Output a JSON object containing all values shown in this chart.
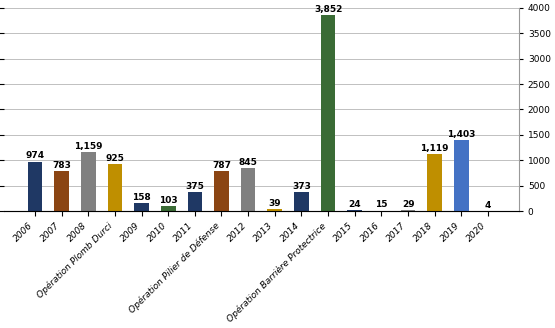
{
  "categories": [
    "2006",
    "2007",
    "2008",
    "Opération Plomb Durci",
    "2009",
    "2010",
    "2011",
    "Opération Pilier de Défense",
    "2012",
    "2013",
    "2014",
    "Opération Barrière Protectrice",
    "2015",
    "2016",
    "2017",
    "2018",
    "2019",
    "2020"
  ],
  "values": [
    974,
    783,
    1159,
    925,
    158,
    103,
    375,
    787,
    845,
    39,
    373,
    3852,
    24,
    15,
    29,
    1119,
    1403,
    4
  ],
  "colors": [
    "#1F3864",
    "#8B4513",
    "#808080",
    "#BF8F00",
    "#1F3864",
    "#3A6B35",
    "#1F3864",
    "#8B4513",
    "#808080",
    "#BF8F00",
    "#1F3864",
    "#3A6B35",
    "#1F3864",
    "#8B4513",
    "#808080",
    "#BF8F00",
    "#4472C4",
    "#3A6B35"
  ],
  "ylim": [
    0,
    4000
  ],
  "yticks": [
    0,
    500,
    1000,
    1500,
    2000,
    2500,
    3000,
    3500,
    4000
  ],
  "background_color": "#FFFFFF",
  "grid_color": "#C0C0C0",
  "label_fontsize": 6.5,
  "value_fontsize": 6.5,
  "bar_width": 0.55
}
